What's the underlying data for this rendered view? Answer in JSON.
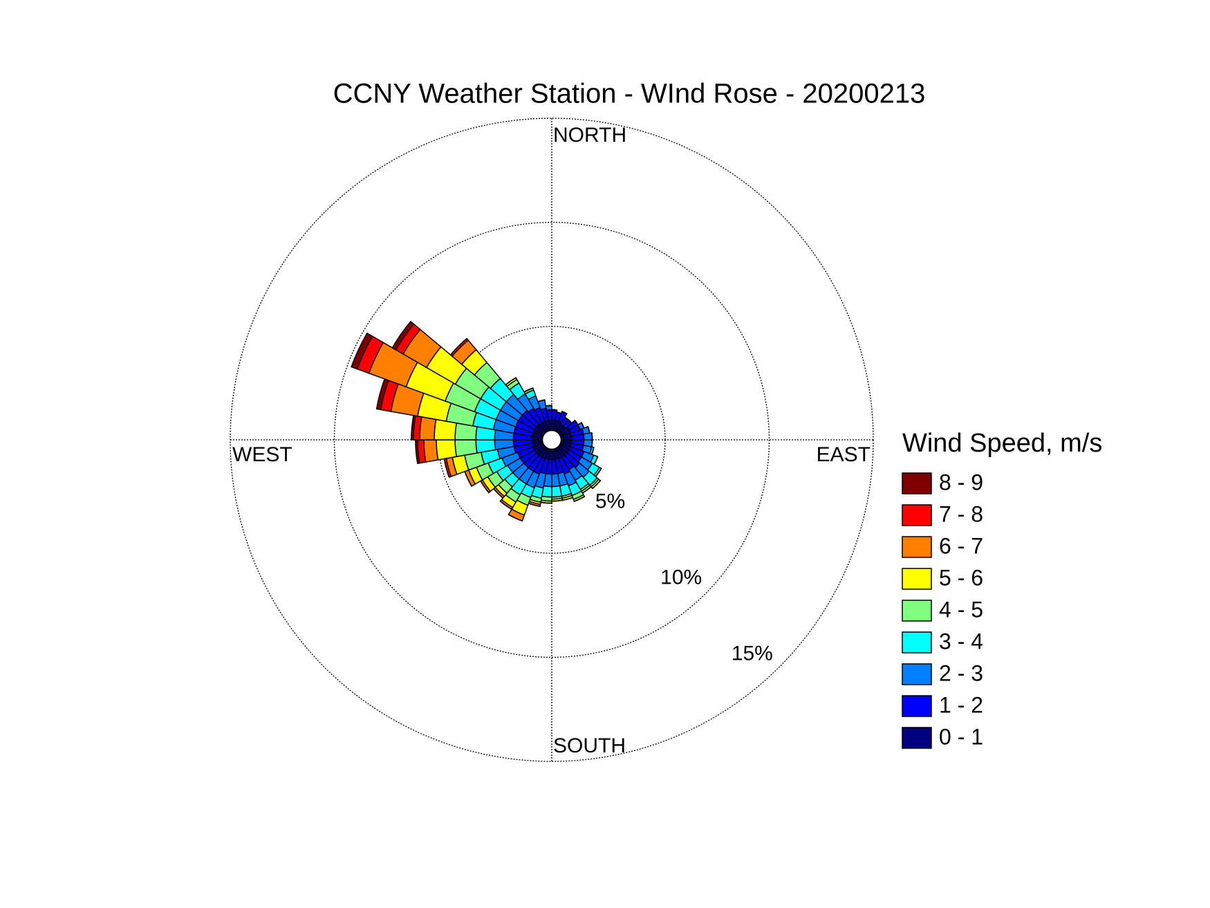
{
  "chart_data": {
    "type": "windrose",
    "title": "CCNY Weather Station - WInd Rose - 20200213",
    "direction_labels": {
      "north": "NORTH",
      "east": "EAST",
      "south": "SOUTH",
      "west": "WEST"
    },
    "legend_title": "Wind Speed, m/s",
    "x": [
      5,
      15,
      25,
      35,
      45,
      55,
      65,
      75,
      85,
      95,
      105,
      115,
      125,
      135,
      145,
      155,
      165,
      175,
      185,
      195,
      205,
      215,
      225,
      235,
      245,
      255,
      265,
      275,
      285,
      295,
      305,
      315,
      325,
      335,
      345,
      355
    ],
    "sector_width": 10,
    "rlim": [
      0,
      15
    ],
    "rticks": [
      {
        "value": 5,
        "label": "5%"
      },
      {
        "value": 10,
        "label": "10%"
      },
      {
        "value": 15,
        "label": "15%"
      }
    ],
    "grid": true,
    "series": [
      {
        "name": "0 - 1",
        "color": "#000080",
        "values": [
          0.5,
          0.5,
          0.5,
          0.4,
          0.4,
          0.5,
          0.5,
          0.5,
          0.5,
          0.5,
          0.5,
          0.5,
          0.5,
          0.5,
          0.5,
          0.5,
          0.5,
          0.5,
          0.5,
          0.5,
          0.5,
          0.5,
          0.5,
          0.5,
          0.5,
          0.5,
          0.5,
          0.5,
          0.5,
          0.5,
          0.5,
          0.5,
          0.5,
          0.5,
          0.5,
          0.5
        ]
      },
      {
        "name": "1 - 2",
        "color": "#0000ff",
        "values": [
          0.5,
          0.4,
          0.5,
          0.4,
          0.4,
          0.5,
          0.5,
          0.6,
          0.6,
          0.6,
          0.6,
          0.7,
          0.7,
          0.8,
          0.7,
          0.8,
          0.7,
          0.7,
          0.7,
          0.7,
          0.8,
          0.8,
          0.8,
          0.8,
          0.8,
          0.9,
          0.9,
          0.9,
          0.9,
          0.9,
          0.9,
          0.9,
          0.8,
          0.7,
          0.6,
          0.5
        ]
      },
      {
        "name": "2 - 3",
        "color": "#0080ff",
        "values": [
          0,
          0,
          0,
          0,
          0,
          0,
          0.2,
          0.3,
          0.4,
          0.4,
          0.4,
          0.5,
          0.6,
          0.6,
          0.6,
          0.6,
          0.6,
          0.6,
          0.6,
          0.7,
          0.7,
          0.7,
          0.7,
          0.7,
          0.8,
          0.8,
          0.9,
          0.9,
          1.0,
          1.0,
          1.0,
          1.0,
          0.8,
          0.6,
          0.4,
          0.2
        ]
      },
      {
        "name": "3 - 4",
        "color": "#00ffff",
        "values": [
          0,
          0,
          0,
          0,
          0,
          0,
          0,
          0,
          0,
          0,
          0.1,
          0.2,
          0.4,
          0.5,
          0.5,
          0.5,
          0.5,
          0.5,
          0.5,
          0.5,
          0.5,
          0.6,
          0.5,
          0.6,
          0.7,
          0.8,
          0.9,
          0.9,
          1.0,
          1.1,
          1.1,
          1.0,
          0.6,
          0.3,
          0,
          0
        ]
      },
      {
        "name": "4 - 5",
        "color": "#80ff80",
        "values": [
          0,
          0,
          0,
          0,
          0,
          0,
          0,
          0,
          0,
          0,
          0,
          0,
          0.1,
          0.1,
          0.1,
          0.2,
          0.1,
          0.1,
          0.2,
          0.2,
          0.4,
          0.4,
          0.4,
          0.5,
          0.6,
          0.8,
          1.0,
          1.0,
          1.3,
          1.5,
          1.4,
          1.0,
          0.2,
          0.1,
          0,
          0
        ]
      },
      {
        "name": "5 - 6",
        "color": "#ffff00",
        "values": [
          0,
          0,
          0,
          0,
          0,
          0,
          0,
          0,
          0,
          0,
          0,
          0,
          0,
          0.1,
          0.1,
          0.1,
          0.1,
          0.1,
          0.1,
          0.1,
          0.5,
          0.3,
          0.2,
          0.3,
          0.4,
          0.6,
          0.9,
          1.0,
          1.4,
          2.0,
          1.6,
          0.8,
          0.1,
          0,
          0,
          0
        ]
      },
      {
        "name": "6 - 7",
        "color": "#ff8000",
        "values": [
          0,
          0,
          0,
          0,
          0,
          0,
          0,
          0,
          0,
          0,
          0,
          0,
          0,
          0,
          0,
          0,
          0,
          0,
          0,
          0.1,
          0.3,
          0.1,
          0.1,
          0.1,
          0.2,
          0.3,
          0.6,
          0.7,
          1.3,
          1.9,
          1.3,
          0.6,
          0,
          0,
          0,
          0
        ]
      },
      {
        "name": "7 - 8",
        "color": "#ff0000",
        "values": [
          0,
          0,
          0,
          0,
          0,
          0,
          0,
          0,
          0,
          0,
          0,
          0,
          0,
          0,
          0,
          0,
          0,
          0,
          0,
          0,
          0,
          0,
          0,
          0,
          0,
          0.1,
          0.3,
          0.3,
          0.5,
          0.6,
          0.4,
          0.1,
          0,
          0,
          0,
          0
        ]
      },
      {
        "name": "8 - 9",
        "color": "#800000",
        "values": [
          0,
          0,
          0,
          0,
          0,
          0,
          0,
          0,
          0,
          0,
          0,
          0,
          0,
          0,
          0,
          0,
          0,
          0,
          0,
          0,
          0,
          0,
          0,
          0,
          0,
          0,
          0.1,
          0.1,
          0.2,
          0.3,
          0.2,
          0,
          0,
          0,
          0,
          0
        ]
      }
    ]
  }
}
